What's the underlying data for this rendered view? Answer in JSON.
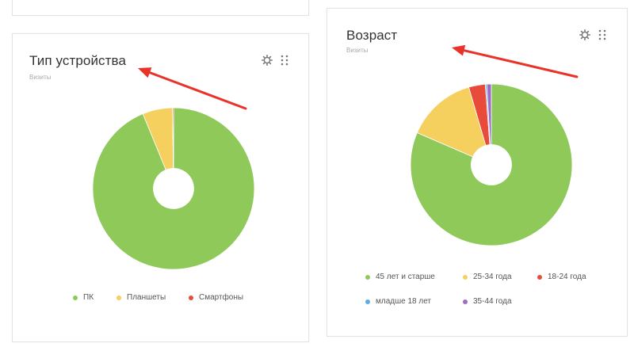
{
  "widgets": [
    {
      "title": "Тип устройства",
      "subtitle": "Визиты",
      "tools": {
        "settings_icon": "gear-icon",
        "drag_icon": "drag-handle-icon"
      },
      "chart_data": {
        "type": "pie",
        "donut": true,
        "categories": [
          "ПК",
          "Планшеты",
          "Смартфоны"
        ],
        "values": [
          93.8,
          6.0,
          0.2
        ],
        "colors": [
          "#8ec95a",
          "#f5d05e",
          "#e84b3a"
        ],
        "legend_position": "bottom"
      }
    },
    {
      "title": "Возраст",
      "subtitle": "Визиты",
      "tools": {
        "settings_icon": "gear-icon",
        "drag_icon": "drag-handle-icon"
      },
      "chart_data": {
        "type": "pie",
        "donut": true,
        "categories": [
          "45 лет и старше",
          "25-34 года",
          "18-24 года",
          "младше 18 лет",
          "35-44 года"
        ],
        "values": [
          81.5,
          14.0,
          3.3,
          0.3,
          0.9
        ],
        "colors": [
          "#8ec95a",
          "#f5d05e",
          "#e84b3a",
          "#5aafe0",
          "#9b6fc5"
        ],
        "legend_position": "bottom"
      }
    }
  ],
  "annotations": {
    "arrow_color": "#e8322a"
  }
}
